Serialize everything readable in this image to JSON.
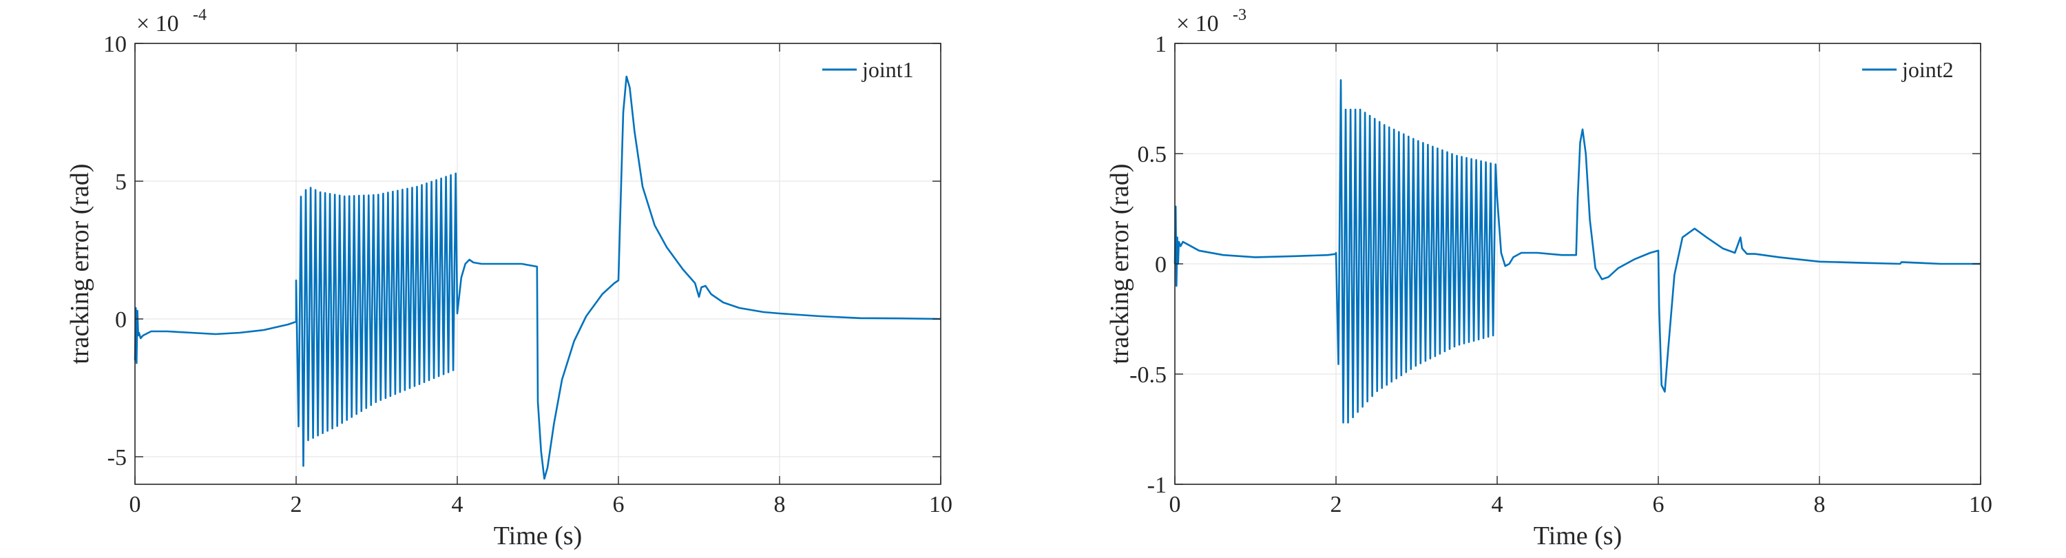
{
  "chart_data": [
    {
      "type": "line",
      "title": "",
      "xlabel": "Time (s)",
      "ylabel": "tracking error (rad)",
      "exponent_label": "× 10",
      "exponent": "-4",
      "xlim": [
        0,
        10
      ],
      "ylim": [
        -6,
        10
      ],
      "xticks": [
        0,
        2,
        4,
        6,
        8,
        10
      ],
      "xtick_labels": [
        "0",
        "2",
        "4",
        "6",
        "8",
        "10"
      ],
      "yticks": [
        -5,
        0,
        5,
        10
      ],
      "ytick_labels": [
        "-5",
        "0",
        "5",
        "10"
      ],
      "grid": true,
      "legend_position": "top-right",
      "line_color": "#0072BD",
      "series": [
        {
          "name": "joint1",
          "segments": [
            {
              "kind": "points",
              "x": [
                0,
                0.01,
                0.02,
                0.03,
                0.04,
                0.05,
                0.07,
                0.1,
                0.2,
                0.4,
                0.7,
                1.0,
                1.3,
                1.6,
                1.9,
                2.0
              ],
              "y": [
                -1.5,
                0.4,
                -1.6,
                0.3,
                -0.6,
                -0.5,
                -0.7,
                -0.6,
                -0.45,
                -0.45,
                -0.5,
                -0.55,
                -0.5,
                -0.4,
                -0.2,
                -0.1
              ]
            },
            {
              "kind": "oscillation",
              "x_start": 2.0,
              "x_end": 4.0,
              "period": 0.06,
              "upper": [
                [
                  2.0,
                  1.4
                ],
                [
                  2.05,
                  4.4
                ],
                [
                  2.15,
                  4.8
                ],
                [
                  2.3,
                  4.6
                ],
                [
                  2.6,
                  4.45
                ],
                [
                  3.0,
                  4.5
                ],
                [
                  3.5,
                  4.8
                ],
                [
                  4.0,
                  5.3
                ]
              ],
              "lower": [
                [
                  2.0,
                  -2.0
                ],
                [
                  2.06,
                  -5.8
                ],
                [
                  2.15,
                  -4.4
                ],
                [
                  2.5,
                  -3.9
                ],
                [
                  3.0,
                  -3.0
                ],
                [
                  3.5,
                  -2.4
                ],
                [
                  4.0,
                  -1.8
                ]
              ]
            },
            {
              "kind": "points",
              "x": [
                4.0,
                4.05,
                4.1,
                4.15,
                4.2,
                4.3,
                4.5,
                4.8,
                4.99,
                5.0,
                5.04,
                5.08,
                5.12,
                5.2,
                5.3,
                5.45,
                5.6,
                5.8,
                5.95,
                6.0,
                6.03,
                6.06,
                6.1,
                6.14,
                6.2,
                6.3,
                6.45,
                6.6,
                6.8,
                6.95,
                7.0,
                7.03,
                7.08,
                7.15,
                7.3,
                7.5,
                7.8,
                8.0,
                8.5,
                9.0,
                9.5,
                10.0
              ],
              "y": [
                0.2,
                1.5,
                2.0,
                2.15,
                2.05,
                2.0,
                2.0,
                2.0,
                1.9,
                -3.0,
                -4.8,
                -5.8,
                -5.4,
                -3.8,
                -2.2,
                -0.8,
                0.1,
                0.9,
                1.3,
                1.4,
                4.5,
                7.5,
                8.8,
                8.4,
                6.8,
                4.8,
                3.4,
                2.6,
                1.8,
                1.3,
                0.8,
                1.15,
                1.2,
                0.9,
                0.6,
                0.4,
                0.25,
                0.2,
                0.1,
                0.03,
                0.02,
                0.0
              ]
            }
          ]
        }
      ]
    },
    {
      "type": "line",
      "title": "",
      "xlabel": "Time (s)",
      "ylabel": "tracking error (rad)",
      "exponent_label": "× 10",
      "exponent": "-3",
      "xlim": [
        0,
        10
      ],
      "ylim": [
        -1,
        1
      ],
      "xticks": [
        0,
        2,
        4,
        6,
        8,
        10
      ],
      "xtick_labels": [
        "0",
        "2",
        "4",
        "6",
        "8",
        "10"
      ],
      "yticks": [
        -1,
        -0.5,
        0,
        0.5,
        1
      ],
      "ytick_labels": [
        "-1",
        "-0.5",
        "0",
        "0.5",
        "1"
      ],
      "grid": true,
      "legend_position": "top-right",
      "line_color": "#0072BD",
      "series": [
        {
          "name": "joint2",
          "segments": [
            {
              "kind": "points",
              "x": [
                0,
                0.01,
                0.02,
                0.03,
                0.04,
                0.05,
                0.07,
                0.1,
                0.15,
                0.3,
                0.6,
                1.0,
                1.5,
                1.9,
                2.0
              ],
              "y": [
                0.0,
                0.26,
                -0.1,
                0.12,
                0.0,
                0.1,
                0.08,
                0.1,
                0.09,
                0.06,
                0.04,
                0.03,
                0.035,
                0.04,
                0.045
              ]
            },
            {
              "kind": "oscillation",
              "x_start": 2.0,
              "x_end": 4.0,
              "period": 0.06,
              "upper": [
                [
                  2.0,
                  0.05
                ],
                [
                  2.04,
                  0.9
                ],
                [
                  2.1,
                  0.7
                ],
                [
                  2.3,
                  0.7
                ],
                [
                  2.6,
                  0.63
                ],
                [
                  3.0,
                  0.56
                ],
                [
                  3.5,
                  0.49
                ],
                [
                  4.0,
                  0.45
                ]
              ],
              "lower": [
                [
                  2.0,
                  -0.19
                ],
                [
                  2.06,
                  -0.72
                ],
                [
                  2.15,
                  -0.72
                ],
                [
                  2.5,
                  -0.58
                ],
                [
                  3.0,
                  -0.46
                ],
                [
                  3.5,
                  -0.37
                ],
                [
                  4.0,
                  -0.32
                ]
              ]
            },
            {
              "kind": "points",
              "x": [
                4.0,
                4.05,
                4.1,
                4.15,
                4.2,
                4.3,
                4.5,
                4.8,
                4.98,
                5.0,
                5.03,
                5.06,
                5.1,
                5.15,
                5.22,
                5.3,
                5.38,
                5.5,
                5.7,
                5.9,
                6.0,
                6.01,
                6.04,
                6.08,
                6.12,
                6.2,
                6.3,
                6.45,
                6.6,
                6.8,
                6.95,
                7.0,
                7.02,
                7.04,
                7.1,
                7.2,
                7.5,
                8.0,
                8.5,
                9.0,
                9.02,
                9.5,
                10.0
              ],
              "y": [
                0.3,
                0.05,
                -0.01,
                0.0,
                0.03,
                0.05,
                0.05,
                0.04,
                0.04,
                0.3,
                0.55,
                0.61,
                0.5,
                0.2,
                -0.02,
                -0.07,
                -0.06,
                -0.02,
                0.02,
                0.05,
                0.06,
                -0.2,
                -0.55,
                -0.58,
                -0.4,
                -0.05,
                0.12,
                0.16,
                0.12,
                0.07,
                0.05,
                0.1,
                0.12,
                0.07,
                0.045,
                0.045,
                0.03,
                0.01,
                0.005,
                0.0,
                0.008,
                0.0,
                0.0
              ]
            }
          ]
        }
      ]
    }
  ]
}
